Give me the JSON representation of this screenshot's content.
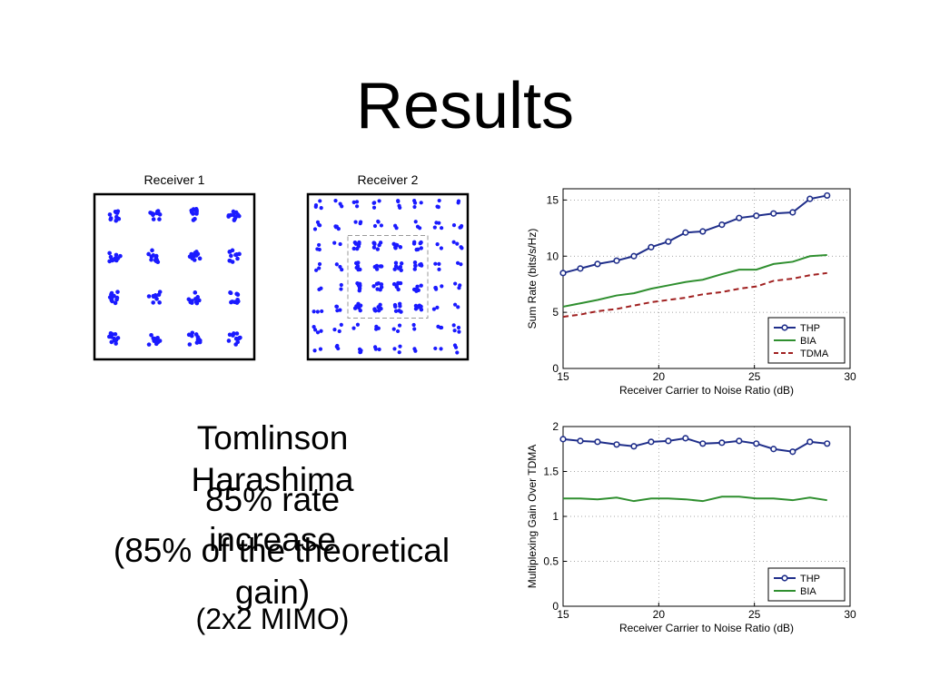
{
  "slide": {
    "title": "Results",
    "text_lines": [
      "Tomlinson",
      "Harashima",
      "85% rate",
      "increase",
      "(85% of the theoretical",
      "gain)",
      "(2x2 MIMO)"
    ]
  },
  "chart_data": [
    {
      "type": "scatter",
      "title": "Receiver 1",
      "xlabel": "",
      "ylabel": "",
      "series": [
        {
          "color": "#1a1aff",
          "x": [
            -3,
            -1,
            1,
            3,
            -3,
            -1,
            1,
            3,
            -3,
            -1,
            1,
            3,
            -3,
            -1,
            1,
            3
          ],
          "y": [
            3,
            3,
            3,
            3,
            1,
            1,
            1,
            1,
            -1,
            -1,
            -1,
            -1,
            -3,
            -3,
            -3,
            -3
          ]
        }
      ],
      "xlim": [
        -4,
        4
      ],
      "ylim": [
        -4,
        4
      ],
      "grid": false
    },
    {
      "type": "scatter",
      "title": "Receiver 2",
      "xlabel": "",
      "ylabel": "",
      "series": [
        {
          "color": "#1a1aff",
          "x": [
            -3,
            -1,
            1,
            3,
            -3,
            -1,
            1,
            3,
            -3,
            -1,
            1,
            3,
            -3,
            -1,
            1,
            3
          ],
          "y": [
            3,
            3,
            3,
            3,
            1,
            1,
            1,
            1,
            -1,
            -1,
            -1,
            -1,
            -3,
            -3,
            -3,
            -3
          ]
        }
      ],
      "xlim": [
        -8,
        8
      ],
      "ylim": [
        -8,
        8
      ],
      "inner_box": [
        -4,
        4
      ],
      "grid": false
    },
    {
      "type": "line",
      "xlabel": "Receiver Carrier to Noise Ratio (dB)",
      "ylabel": "Sum Rate (bits/s/Hz)",
      "xlim": [
        15,
        30
      ],
      "ylim": [
        0,
        16
      ],
      "xticks": [
        15,
        20,
        25,
        30
      ],
      "yticks": [
        0,
        5,
        10,
        15
      ],
      "grid": true,
      "legend": "bottom-right",
      "series": [
        {
          "name": "THP",
          "color": "#1f2e8a",
          "style": "solid-markers",
          "x": [
            15,
            15.9,
            16.8,
            17.8,
            18.7,
            19.6,
            20.5,
            21.4,
            22.3,
            23.3,
            24.2,
            25.1,
            26,
            27,
            27.9,
            28.8
          ],
          "y": [
            8.5,
            8.9,
            9.3,
            9.6,
            10,
            10.8,
            11.3,
            12.1,
            12.2,
            12.8,
            13.4,
            13.6,
            13.8,
            13.9,
            15.1,
            15.4
          ]
        },
        {
          "name": "BIA",
          "color": "#2f8f2f",
          "style": "solid",
          "x": [
            15,
            15.9,
            16.8,
            17.8,
            18.7,
            19.6,
            20.5,
            21.4,
            22.3,
            23.3,
            24.2,
            25.1,
            26,
            27,
            27.9,
            28.8
          ],
          "y": [
            5.5,
            5.8,
            6.1,
            6.5,
            6.7,
            7.1,
            7.4,
            7.7,
            7.9,
            8.4,
            8.8,
            8.8,
            9.3,
            9.5,
            10,
            10.1
          ]
        },
        {
          "name": "TDMA",
          "color": "#a02020",
          "style": "dashed",
          "x": [
            15,
            15.9,
            16.8,
            17.8,
            18.7,
            19.6,
            20.5,
            21.4,
            22.3,
            23.3,
            24.2,
            25.1,
            26,
            27,
            27.9,
            28.8
          ],
          "y": [
            4.6,
            4.8,
            5.1,
            5.3,
            5.6,
            5.9,
            6.1,
            6.3,
            6.6,
            6.8,
            7.1,
            7.3,
            7.8,
            8,
            8.3,
            8.5
          ]
        }
      ]
    },
    {
      "type": "line",
      "xlabel": "Receiver Carrier to Noise Ratio (dB)",
      "ylabel": "Multiplexing Gain Over TDMA",
      "xlim": [
        15,
        30
      ],
      "ylim": [
        0,
        2
      ],
      "xticks": [
        15,
        20,
        25,
        30
      ],
      "yticks": [
        0,
        0.5,
        1,
        1.5,
        2
      ],
      "grid": true,
      "legend": "bottom-right",
      "series": [
        {
          "name": "THP",
          "color": "#1f2e8a",
          "style": "solid-markers",
          "x": [
            15,
            15.9,
            16.8,
            17.8,
            18.7,
            19.6,
            20.5,
            21.4,
            22.3,
            23.3,
            24.2,
            25.1,
            26,
            27,
            27.9,
            28.8
          ],
          "y": [
            1.86,
            1.84,
            1.83,
            1.8,
            1.78,
            1.83,
            1.84,
            1.87,
            1.81,
            1.82,
            1.84,
            1.81,
            1.75,
            1.72,
            1.83,
            1.81
          ]
        },
        {
          "name": "BIA",
          "color": "#2f8f2f",
          "style": "solid",
          "x": [
            15,
            15.9,
            16.8,
            17.8,
            18.7,
            19.6,
            20.5,
            21.4,
            22.3,
            23.3,
            24.2,
            25.1,
            26,
            27,
            27.9,
            28.8
          ],
          "y": [
            1.2,
            1.2,
            1.19,
            1.21,
            1.17,
            1.2,
            1.2,
            1.19,
            1.17,
            1.22,
            1.22,
            1.2,
            1.2,
            1.18,
            1.21,
            1.18
          ]
        }
      ]
    }
  ]
}
